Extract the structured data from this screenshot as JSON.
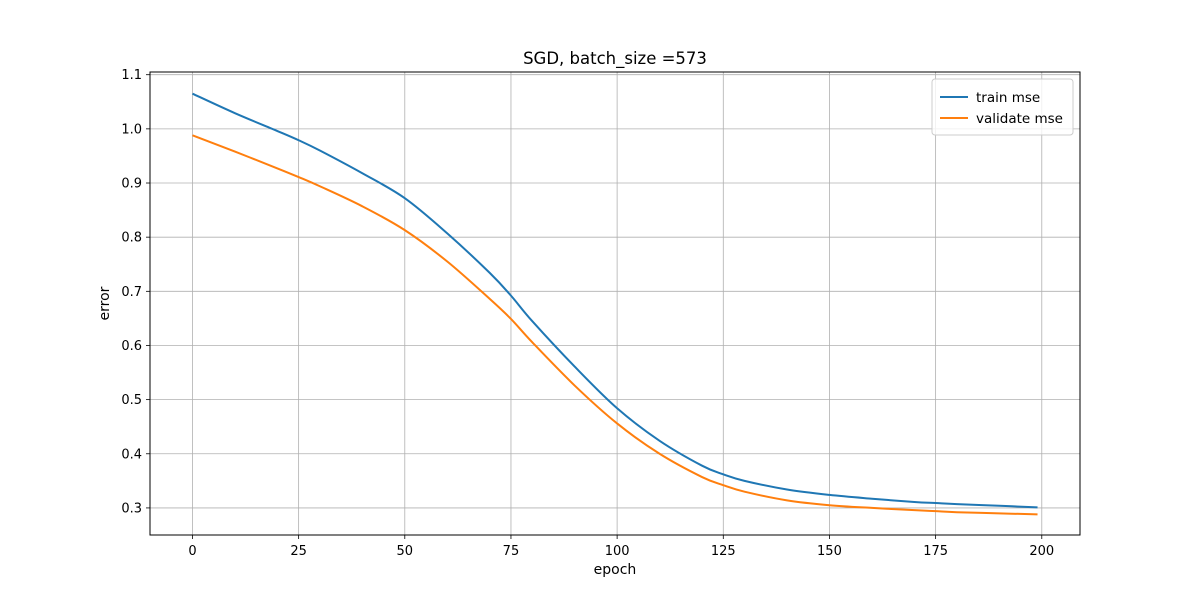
{
  "chart_data": {
    "type": "line",
    "title": "SGD, batch_size =573",
    "xlabel": "epoch",
    "ylabel": "error",
    "xlim": [
      -10,
      209
    ],
    "ylim": [
      0.25,
      1.105
    ],
    "xticks": [
      0,
      25,
      50,
      75,
      100,
      125,
      150,
      175,
      200
    ],
    "yticks": [
      0.3,
      0.4,
      0.5,
      0.6,
      0.7,
      0.8,
      0.9,
      1.0,
      1.1
    ],
    "ytick_labels": [
      "0.3",
      "0.4",
      "0.5",
      "0.6",
      "0.7",
      "0.8",
      "0.9",
      "1.0",
      "1.1"
    ],
    "grid": true,
    "legend_position": "top-right",
    "x": [
      0,
      10,
      20,
      25,
      30,
      40,
      50,
      60,
      70,
      75,
      80,
      90,
      100,
      110,
      120,
      125,
      130,
      140,
      150,
      160,
      170,
      175,
      180,
      190,
      199
    ],
    "series": [
      {
        "name": "train mse",
        "color": "#1f77b4",
        "values": [
          1.065,
          1.029,
          0.996,
          0.979,
          0.96,
          0.918,
          0.872,
          0.807,
          0.734,
          0.692,
          0.645,
          0.561,
          0.484,
          0.424,
          0.378,
          0.362,
          0.35,
          0.334,
          0.324,
          0.317,
          0.311,
          0.309,
          0.307,
          0.304,
          0.301
        ]
      },
      {
        "name": "validate mse",
        "color": "#ff7f0e",
        "values": [
          0.988,
          0.958,
          0.927,
          0.911,
          0.894,
          0.857,
          0.813,
          0.755,
          0.686,
          0.649,
          0.606,
          0.526,
          0.456,
          0.4,
          0.357,
          0.342,
          0.33,
          0.314,
          0.305,
          0.3,
          0.296,
          0.294,
          0.292,
          0.29,
          0.288
        ]
      }
    ]
  }
}
